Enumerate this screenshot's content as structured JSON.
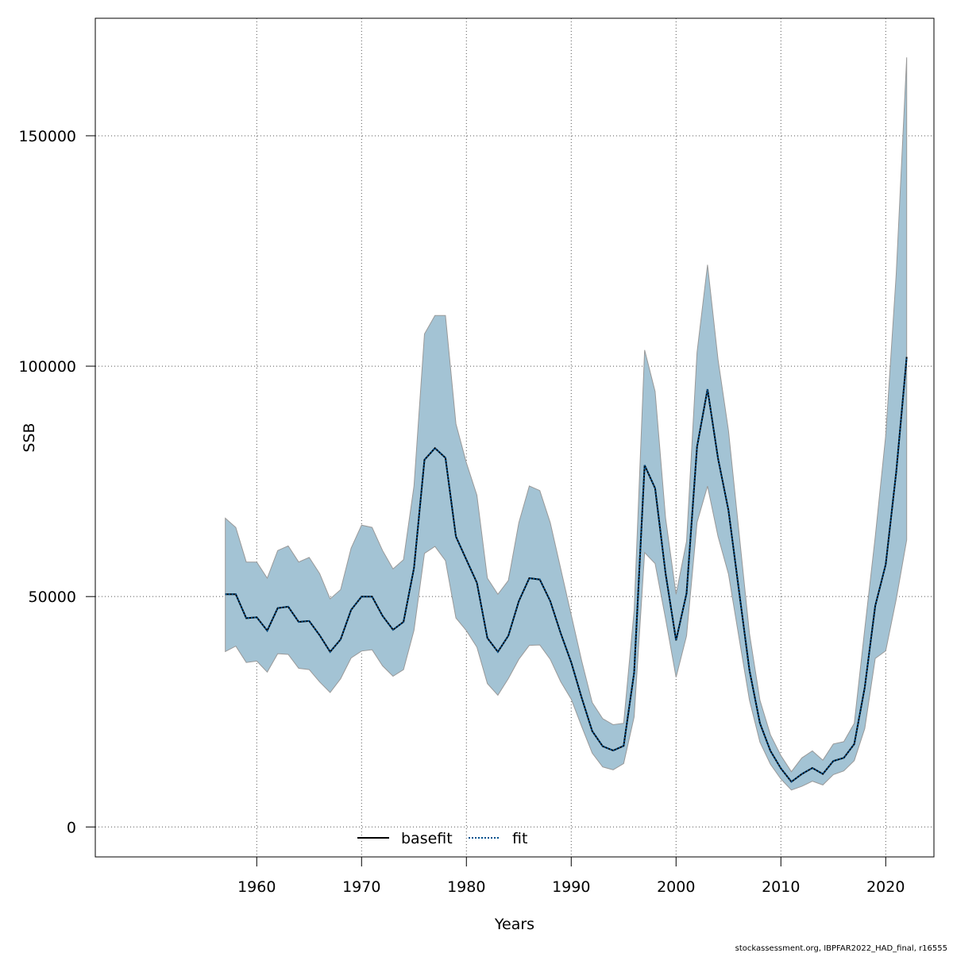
{
  "chart_data": {
    "type": "area",
    "title": "",
    "xlabel": "Years",
    "ylabel": "SSB",
    "xlim": [
      1944.6,
      2024.6
    ],
    "ylim": [
      -6500,
      175500
    ],
    "x_ticks": [
      "1960",
      "1970",
      "1980",
      "1990",
      "2000",
      "2010",
      "2020"
    ],
    "y_ticks": [
      "0",
      "50000",
      "100000",
      "150000"
    ],
    "grid": true,
    "legend_position": "bottom",
    "legend": [
      "basefit",
      "fit"
    ],
    "footer": "stockassessment.org, IBPFAR2022_HAD_final, r16555",
    "colors": {
      "band_fill": "#a3c3d4",
      "band_edge": "#999999",
      "basefit": "#000000",
      "fit": "#00508c"
    },
    "x": [
      1957,
      1958,
      1959,
      1960,
      1961,
      1962,
      1963,
      1964,
      1965,
      1966,
      1967,
      1968,
      1969,
      1970,
      1971,
      1972,
      1973,
      1974,
      1975,
      1976,
      1977,
      1978,
      1979,
      1980,
      1981,
      1982,
      1983,
      1984,
      1985,
      1986,
      1987,
      1988,
      1989,
      1990,
      1991,
      1992,
      1993,
      1994,
      1995,
      1996,
      1997,
      1998,
      1999,
      2000,
      2001,
      2002,
      2003,
      2004,
      2005,
      2006,
      2007,
      2008,
      2009,
      2010,
      2011,
      2012,
      2013,
      2014,
      2015,
      2016,
      2017,
      2018,
      2019,
      2020,
      2021,
      2022
    ],
    "series": [
      {
        "name": "basefit",
        "values": [
          50500,
          50500,
          45300,
          45500,
          42600,
          47500,
          47800,
          44500,
          44700,
          41600,
          38000,
          40700,
          47100,
          50000,
          50000,
          45800,
          42800,
          44500,
          56200,
          79700,
          82200,
          80100,
          63000,
          58000,
          53000,
          41000,
          38000,
          41500,
          49000,
          54000,
          53700,
          49000,
          42000,
          35700,
          28000,
          20800,
          17500,
          16600,
          17600,
          33500,
          78500,
          73500,
          55000,
          40500,
          50700,
          82500,
          95000,
          80000,
          68700,
          51300,
          34000,
          22500,
          16500,
          12700,
          9800,
          11500,
          12800,
          11500,
          14300,
          15000,
          18000,
          30300,
          48000,
          57000,
          77000,
          102000
        ]
      },
      {
        "name": "fit",
        "values": [
          50500,
          50500,
          45300,
          45500,
          42600,
          47500,
          47800,
          44500,
          44700,
          41600,
          38000,
          40700,
          47100,
          50000,
          50000,
          45800,
          42800,
          44500,
          56200,
          79700,
          82200,
          80100,
          63000,
          58000,
          53000,
          41000,
          38000,
          41500,
          49000,
          54000,
          53700,
          49000,
          42000,
          35700,
          28000,
          20800,
          17500,
          16600,
          17600,
          33500,
          78500,
          73500,
          55000,
          40500,
          50700,
          82500,
          95000,
          80000,
          68700,
          51300,
          34000,
          22500,
          16500,
          12700,
          9800,
          11500,
          12800,
          11500,
          14300,
          15000,
          18000,
          30300,
          48000,
          57000,
          77000,
          102000
        ]
      }
    ],
    "band": {
      "upper": [
        67000,
        65000,
        57500,
        57500,
        54000,
        60000,
        61000,
        57500,
        58500,
        55000,
        49500,
        51500,
        60500,
        65500,
        65000,
        60000,
        56000,
        58000,
        74000,
        107000,
        111000,
        111000,
        87500,
        79000,
        72000,
        54000,
        50500,
        53500,
        66000,
        74000,
        73000,
        66000,
        56000,
        46000,
        36000,
        27000,
        23500,
        22200,
        22500,
        47000,
        103500,
        94500,
        67000,
        50500,
        62000,
        103000,
        122000,
        101500,
        86000,
        64000,
        42000,
        27500,
        20000,
        15500,
        12000,
        15000,
        16500,
        14500,
        18000,
        18500,
        22500,
        43000,
        63000,
        85000,
        120000,
        167000
      ]
    }
  }
}
